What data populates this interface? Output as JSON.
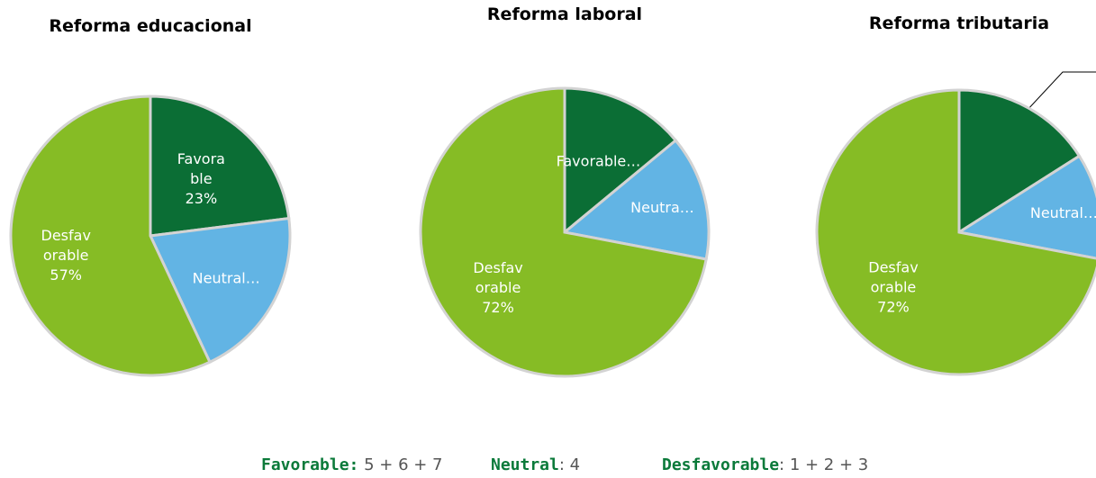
{
  "chart_data": [
    {
      "type": "pie",
      "title": "Reforma educacional",
      "categories": [
        "Favorable",
        "Neutral",
        "Desfavorable"
      ],
      "values": [
        23,
        20,
        57
      ],
      "value_labels": [
        [
          "Favora",
          "ble",
          "23%"
        ],
        [
          "Neutral…"
        ],
        [
          "Desfav",
          "orable",
          "57%"
        ]
      ],
      "colors": [
        "#0b6e35",
        "#62b4e4",
        "#86bc25"
      ]
    },
    {
      "type": "pie",
      "title": "Reforma laboral",
      "categories": [
        "Favorable",
        "Neutral",
        "Desfavorable"
      ],
      "values": [
        14,
        14,
        72
      ],
      "value_labels": [
        [
          "Favorable…"
        ],
        [
          "Neutra…"
        ],
        [
          "Desfav",
          "orable",
          "72%"
        ]
      ],
      "colors": [
        "#0b6e35",
        "#62b4e4",
        "#86bc25"
      ]
    },
    {
      "type": "pie",
      "title": "Reforma tributaria",
      "categories": [
        "Favorable",
        "Neutral",
        "Desfavorable"
      ],
      "values": [
        16,
        12,
        72
      ],
      "value_labels": [
        null,
        [
          "Neutral…"
        ],
        [
          "Desfav",
          "orable",
          "72%"
        ]
      ],
      "colors": [
        "#0b6e35",
        "#62b4e4",
        "#86bc25"
      ]
    }
  ],
  "footer": [
    {
      "label": "Favorable:",
      "text": " 5 + 6 + 7"
    },
    {
      "label": "Neutral",
      "text": ": 4"
    },
    {
      "label": "Desfavorable",
      "text": ": 1 + 2 + 3"
    }
  ]
}
